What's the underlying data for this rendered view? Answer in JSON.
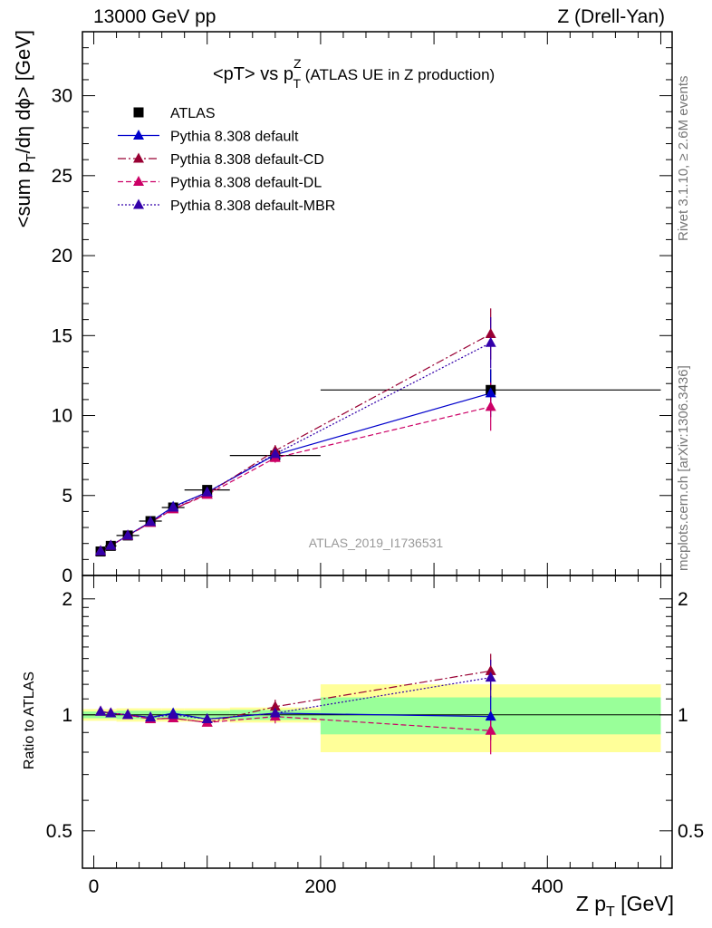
{
  "header": {
    "energy_label": "13000 GeV pp",
    "process_label": "Z (Drell-Yan)"
  },
  "side_labels": {
    "rivet": "Rivet 3.1.10, ≥ 2.6M events",
    "mcplots": "mcplots.cern.ch [arXiv:1306.3436]"
  },
  "watermark": "ATLAS_2019_I1736531",
  "chart_data": [
    {
      "type": "line",
      "title": "<pT> vs pTZ (ATLAS UE in Z production)",
      "title_parts": {
        "main": "<pT> vs p",
        "sup": "Z",
        "sub": "T",
        "rest": " (ATLAS UE in Z production)"
      },
      "xlabel": "Z pT [GeV]",
      "xlabel_parts": {
        "main": "Z p",
        "sub": "T",
        "rest": " [GeV]"
      },
      "ylabel": "<sum pT/dη dϕ> [GeV]",
      "ylabel_parts": {
        "a": "<sum p",
        "sub": "T",
        "b": "/dη dϕ> [GeV]"
      },
      "xlim": [
        -10,
        510
      ],
      "ylim": [
        0,
        34
      ],
      "y_ticks": [
        0,
        5,
        10,
        15,
        20,
        25,
        30
      ],
      "y_tick_labels": [
        "0",
        "5",
        "10",
        "15",
        "20",
        "25",
        "30"
      ],
      "legend_position": "top-left",
      "grid": false,
      "x": [
        6,
        15,
        30,
        50,
        70,
        100,
        160,
        350
      ],
      "x_err": [
        [
          2,
          10
        ],
        [
          10,
          20
        ],
        [
          20,
          40
        ],
        [
          40,
          60
        ],
        [
          60,
          80
        ],
        [
          80,
          120
        ],
        [
          120,
          200
        ],
        [
          200,
          500
        ]
      ],
      "series": [
        {
          "name": "ATLAS",
          "kind": "data",
          "color": "#000000",
          "values": [
            1.5,
            1.85,
            2.5,
            3.4,
            4.25,
            5.35,
            7.5,
            11.6
          ],
          "errors": [
            0.05,
            0.05,
            0.07,
            0.1,
            0.12,
            0.15,
            0.25,
            1.3
          ]
        },
        {
          "name": "Pythia 8.308 default",
          "kind": "mc",
          "color": "#0000cc",
          "dash": "",
          "values": [
            1.52,
            1.87,
            2.5,
            3.35,
            4.3,
            5.2,
            7.55,
            11.4
          ],
          "errors": [
            0.02,
            0.02,
            0.03,
            0.05,
            0.07,
            0.1,
            0.3,
            1.5
          ]
        },
        {
          "name": "Pythia 8.308 default-CD",
          "kind": "mc",
          "color": "#990033",
          "dash": "9 3 2 3",
          "values": [
            1.52,
            1.86,
            2.5,
            3.3,
            4.15,
            5.1,
            7.8,
            15.1
          ],
          "errors": [
            0.02,
            0.02,
            0.03,
            0.05,
            0.07,
            0.1,
            0.35,
            1.6
          ]
        },
        {
          "name": "Pythia 8.308 default-DL",
          "kind": "mc",
          "color": "#cc0066",
          "dash": "6 3",
          "values": [
            1.52,
            1.86,
            2.48,
            3.3,
            4.15,
            5.05,
            7.35,
            10.55
          ],
          "errors": [
            0.02,
            0.02,
            0.03,
            0.05,
            0.07,
            0.1,
            0.3,
            1.5
          ]
        },
        {
          "name": "Pythia 8.308 default-MBR",
          "kind": "mc",
          "color": "#3300aa",
          "dash": "2 2",
          "values": [
            1.52,
            1.86,
            2.5,
            3.35,
            4.25,
            5.2,
            7.6,
            14.55
          ],
          "errors": [
            0.02,
            0.02,
            0.03,
            0.05,
            0.07,
            0.1,
            0.3,
            1.6
          ]
        }
      ]
    },
    {
      "type": "line",
      "title": "",
      "xlabel": "Z pT [GeV]",
      "ylabel": "Ratio to ATLAS",
      "xlim": [
        -10,
        510
      ],
      "ylim": [
        0.4,
        2.3
      ],
      "log_y": true,
      "y_ticks": [
        0.5,
        1,
        2
      ],
      "y_tick_labels": [
        "0.5",
        "1",
        "2"
      ],
      "x_ticks": [
        0,
        200,
        400
      ],
      "x_tick_labels": [
        "0",
        "200",
        "400"
      ],
      "uncertainty_bands": {
        "x_edges": [
          -10,
          10,
          20,
          40,
          60,
          80,
          120,
          200,
          500
        ],
        "inner_color": "#99ff99",
        "outer_color": "#ffff99",
        "inner": [
          0.02,
          0.02,
          0.025,
          0.025,
          0.025,
          0.025,
          0.03,
          0.11
        ],
        "outer": [
          0.035,
          0.035,
          0.04,
          0.04,
          0.04,
          0.04,
          0.045,
          0.2
        ]
      },
      "x": [
        6,
        15,
        30,
        50,
        70,
        100,
        160,
        350
      ],
      "series": [
        {
          "name": "Pythia 8.308 default",
          "color": "#0000cc",
          "dash": "",
          "values": [
            1.02,
            1.01,
            1.0,
            0.985,
            1.01,
            0.975,
            1.01,
            0.99
          ],
          "errors": [
            0.01,
            0.01,
            0.01,
            0.01,
            0.015,
            0.015,
            0.04,
            0.13
          ]
        },
        {
          "name": "Pythia 8.308 default-CD",
          "color": "#990033",
          "dash": "9 3 2 3",
          "values": [
            1.02,
            1.01,
            1.0,
            0.975,
            0.98,
            0.955,
            1.05,
            1.3
          ],
          "errors": [
            0.01,
            0.01,
            0.01,
            0.01,
            0.015,
            0.015,
            0.045,
            0.14
          ]
        },
        {
          "name": "Pythia 8.308 default-DL",
          "color": "#cc0066",
          "dash": "6 3",
          "values": [
            1.02,
            1.01,
            1.0,
            0.975,
            0.98,
            0.955,
            0.99,
            0.91
          ],
          "errors": [
            0.01,
            0.01,
            0.01,
            0.01,
            0.015,
            0.015,
            0.04,
            0.12
          ]
        },
        {
          "name": "Pythia 8.308 default-MBR",
          "color": "#3300aa",
          "dash": "2 2",
          "values": [
            1.02,
            1.01,
            1.0,
            0.985,
            1.0,
            0.975,
            1.01,
            1.25
          ],
          "errors": [
            0.01,
            0.01,
            0.01,
            0.01,
            0.015,
            0.015,
            0.04,
            0.14
          ]
        }
      ]
    }
  ]
}
